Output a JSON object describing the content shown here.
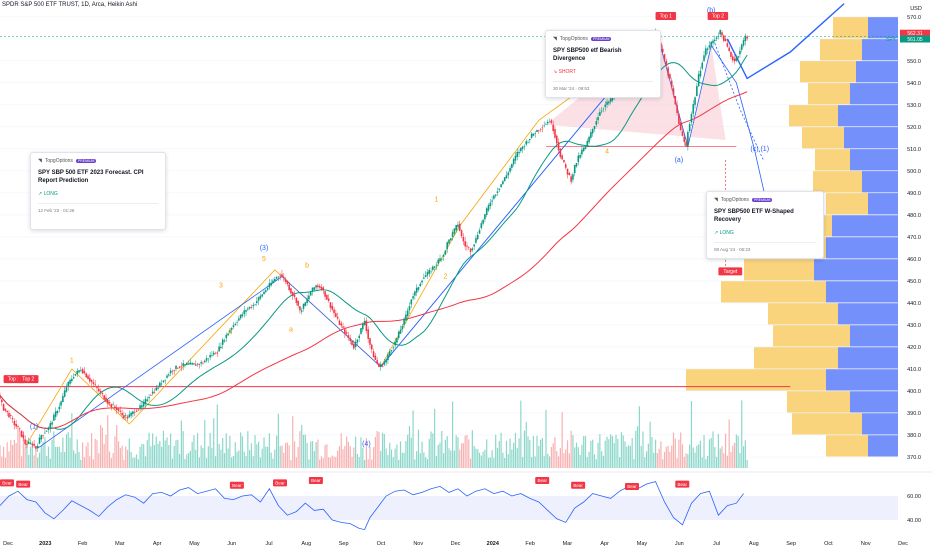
{
  "ideas": [
    {
      "author": "TopgOptions",
      "badge": "PREMIUM",
      "title": "SPY SBP 500 ETF 2023 Forecast. CPI Report Prediction",
      "direction": "↗ LONG",
      "time": "12 Feb '23 · 01:26"
    },
    {
      "author": "TopgOptions",
      "badge": "PREMIUM",
      "title": "SPY SBP500 etf Bearish Divergence",
      "direction": "↘ SHORT",
      "time": "30 Mar '24 · 09:53"
    },
    {
      "author": "TopgOptions",
      "badge": "PREMIUM",
      "title": "SPY SBP500 ETF W-Shaped Recovery",
      "direction": "↗ LONG",
      "time": "08 Aug '24 · 06:23"
    }
  ],
  "chart_data": {
    "type": "candlestick",
    "title": "SPDR S&P 500 ETF TRUST, 1D, Arca, Heikin Ashi",
    "symbol": "SPY",
    "currency": "USD",
    "last_price": "561.05",
    "high_marker": "562.31",
    "ylim": [
      365,
      574
    ],
    "y_ticks": [
      370,
      380,
      390,
      400,
      410,
      420,
      430,
      440,
      450,
      460,
      470,
      480,
      490,
      500,
      510,
      520,
      530,
      540,
      550,
      560,
      570
    ],
    "x_labels": [
      "Dec",
      "2023",
      "Feb",
      "Mar",
      "Apr",
      "May",
      "Jun",
      "Jul",
      "Aug",
      "Sep",
      "Oct",
      "Nov",
      "Dec",
      "2024",
      "Feb",
      "Mar",
      "Apr",
      "May",
      "Jun",
      "Jul",
      "Aug",
      "Sep",
      "Oct",
      "Nov",
      "Dec"
    ],
    "price_path": [
      [
        0,
        398
      ],
      [
        3,
        392
      ],
      [
        6,
        389
      ],
      [
        9,
        385
      ],
      [
        12,
        382
      ],
      [
        15,
        376
      ],
      [
        17,
        376
      ],
      [
        19,
        376
      ],
      [
        21,
        374
      ],
      [
        24,
        380
      ],
      [
        28,
        383
      ],
      [
        32,
        390
      ],
      [
        35,
        395
      ],
      [
        38,
        402
      ],
      [
        42,
        407
      ],
      [
        46,
        410
      ],
      [
        50,
        406
      ],
      [
        54,
        402
      ],
      [
        58,
        398
      ],
      [
        62,
        394
      ],
      [
        66,
        392
      ],
      [
        69,
        389
      ],
      [
        72,
        388
      ],
      [
        76,
        391
      ],
      [
        80,
        393
      ],
      [
        84,
        398
      ],
      [
        88,
        401
      ],
      [
        92,
        405
      ],
      [
        96,
        409
      ],
      [
        100,
        411
      ],
      [
        105,
        412
      ],
      [
        110,
        412
      ],
      [
        114,
        413
      ],
      [
        118,
        416
      ],
      [
        122,
        418
      ],
      [
        126,
        424
      ],
      [
        130,
        429
      ],
      [
        134,
        433
      ],
      [
        138,
        437
      ],
      [
        142,
        439
      ],
      [
        146,
        443
      ],
      [
        150,
        447
      ],
      [
        154,
        451
      ],
      [
        157,
        453
      ],
      [
        160,
        450
      ],
      [
        163,
        445
      ],
      [
        166,
        441
      ],
      [
        168,
        436
      ],
      [
        171,
        440
      ],
      [
        174,
        445
      ],
      [
        177,
        448
      ],
      [
        180,
        447
      ],
      [
        183,
        442
      ],
      [
        186,
        437
      ],
      [
        189,
        432
      ],
      [
        192,
        428
      ],
      [
        195,
        424
      ],
      [
        198,
        420
      ],
      [
        202,
        428
      ],
      [
        204,
        432
      ],
      [
        206,
        424
      ],
      [
        208,
        418
      ],
      [
        210,
        414
      ],
      [
        212,
        411
      ],
      [
        214,
        412
      ],
      [
        216,
        414
      ],
      [
        218,
        418
      ],
      [
        221,
        422
      ],
      [
        224,
        428
      ],
      [
        227,
        434
      ],
      [
        230,
        442
      ],
      [
        233,
        446
      ],
      [
        236,
        451
      ],
      [
        240,
        454
      ],
      [
        244,
        458
      ],
      [
        246,
        460
      ],
      [
        248,
        462
      ],
      [
        250,
        467
      ],
      [
        252,
        470
      ],
      [
        254,
        473
      ],
      [
        256,
        476
      ],
      [
        258,
        470
      ],
      [
        260,
        466
      ],
      [
        263,
        464
      ],
      [
        266,
        469
      ],
      [
        268,
        474
      ],
      [
        271,
        480
      ],
      [
        274,
        486
      ],
      [
        277,
        490
      ],
      [
        280,
        494
      ],
      [
        283,
        498
      ],
      [
        286,
        503
      ],
      [
        289,
        508
      ],
      [
        292,
        511
      ],
      [
        295,
        514
      ],
      [
        298,
        517
      ],
      [
        301,
        519
      ],
      [
        304,
        521
      ],
      [
        307,
        523
      ],
      [
        309,
        519
      ],
      [
        311,
        513
      ],
      [
        313,
        507
      ],
      [
        315,
        503
      ],
      [
        317,
        499
      ],
      [
        319,
        496
      ],
      [
        321,
        502
      ],
      [
        323,
        506
      ],
      [
        325,
        509
      ],
      [
        327,
        511
      ],
      [
        329,
        515
      ],
      [
        331,
        519
      ],
      [
        333,
        523
      ],
      [
        335,
        527
      ],
      [
        338,
        530
      ],
      [
        341,
        532
      ],
      [
        344,
        536
      ],
      [
        347,
        539
      ],
      [
        350,
        542
      ],
      [
        353,
        545
      ],
      [
        356,
        549
      ],
      [
        359,
        553
      ],
      [
        362,
        558
      ],
      [
        364,
        561
      ],
      [
        366,
        562
      ],
      [
        368,
        558
      ],
      [
        370,
        553
      ],
      [
        372,
        547
      ],
      [
        374,
        541
      ],
      [
        376,
        534
      ],
      [
        378,
        526
      ],
      [
        380,
        518
      ],
      [
        382,
        513
      ],
      [
        383,
        511
      ],
      [
        384,
        518
      ],
      [
        386,
        526
      ],
      [
        388,
        534
      ],
      [
        390,
        543
      ],
      [
        392,
        550
      ],
      [
        394,
        555
      ],
      [
        396,
        557
      ],
      [
        398,
        559
      ],
      [
        400,
        561
      ],
      [
        402,
        563
      ],
      [
        404,
        560
      ],
      [
        406,
        556
      ],
      [
        408,
        552
      ],
      [
        410,
        550
      ],
      [
        412,
        553
      ],
      [
        414,
        557
      ],
      [
        416,
        561
      ]
    ],
    "series": [
      {
        "name": "MA fast",
        "color": "#089981"
      },
      {
        "name": "MA slow",
        "color": "#f23645"
      }
    ],
    "annotations": [
      {
        "text": "(1)",
        "x": 19,
        "y": 383,
        "color": "#2962ff"
      },
      {
        "text": "1",
        "x": 40,
        "y": 413,
        "color": "#f7a600"
      },
      {
        "text": "3",
        "x": 123,
        "y": 447,
        "color": "#f7a600"
      },
      {
        "text": "4",
        "x": 128,
        "y": 426,
        "color": "#f7a600"
      },
      {
        "text": "(3)",
        "x": 147,
        "y": 464,
        "color": "#2962ff"
      },
      {
        "text": "5",
        "x": 147,
        "y": 459,
        "color": "#f7a600"
      },
      {
        "text": "a",
        "x": 162,
        "y": 427,
        "color": "#f7a600"
      },
      {
        "text": "b",
        "x": 171,
        "y": 456,
        "color": "#f7a600"
      },
      {
        "text": "(4)",
        "x": 204,
        "y": 375,
        "color": "#2962ff"
      },
      {
        "text": "1",
        "x": 243,
        "y": 486,
        "color": "#f7a600"
      },
      {
        "text": "2",
        "x": 248,
        "y": 451,
        "color": "#f7a600"
      },
      {
        "text": "3",
        "x": 334,
        "y": 534,
        "color": "#f7a600"
      },
      {
        "text": "4",
        "x": 338,
        "y": 508,
        "color": "#f7a600"
      },
      {
        "text": "(a)",
        "x": 378,
        "y": 504,
        "color": "#2962ff"
      },
      {
        "text": "(b)",
        "x": 396,
        "y": 572,
        "color": "#2962ff"
      },
      {
        "text": "(c) (1)",
        "x": 423,
        "y": 509,
        "color": "#2962ff"
      },
      {
        "text": "(c) (1.618)",
        "x": 430,
        "y": 472,
        "color": "#2962ff"
      }
    ],
    "tags": [
      {
        "text": "Top 1",
        "x": 2,
        "y": 404,
        "color": "#f23645"
      },
      {
        "text": "Top 2",
        "x": 10,
        "y": 404,
        "color": "#f23645"
      },
      {
        "text": "Top 1",
        "x": 365,
        "y": 569,
        "color": "#f23645"
      },
      {
        "text": "Top 2",
        "x": 394,
        "y": 569,
        "color": "#f23645"
      },
      {
        "text": "Target",
        "x": 400,
        "y": 453,
        "color": "#f23645"
      }
    ],
    "volume_profile": [
      {
        "price": 370,
        "buy": 0.3,
        "sell": 0.25
      },
      {
        "price": 380,
        "buy": 0.5,
        "sell": 0.3
      },
      {
        "price": 390,
        "buy": 0.45,
        "sell": 0.4
      },
      {
        "price": 400,
        "buy": 1.0,
        "sell": 0.6
      },
      {
        "price": 410,
        "buy": 0.6,
        "sell": 0.5
      },
      {
        "price": 420,
        "buy": 0.55,
        "sell": 0.4
      },
      {
        "price": 430,
        "buy": 0.5,
        "sell": 0.5
      },
      {
        "price": 440,
        "buy": 0.75,
        "sell": 0.6
      },
      {
        "price": 450,
        "buy": 0.5,
        "sell": 0.7
      },
      {
        "price": 460,
        "buy": 0.3,
        "sell": 0.6
      },
      {
        "price": 470,
        "buy": 0.25,
        "sell": 0.55
      },
      {
        "price": 480,
        "buy": 0.3,
        "sell": 0.25
      },
      {
        "price": 490,
        "buy": 0.35,
        "sell": 0.3
      },
      {
        "price": 500,
        "buy": 0.25,
        "sell": 0.4
      },
      {
        "price": 510,
        "buy": 0.3,
        "sell": 0.45
      },
      {
        "price": 520,
        "buy": 0.35,
        "sell": 0.5
      },
      {
        "price": 530,
        "buy": 0.3,
        "sell": 0.4
      },
      {
        "price": 540,
        "buy": 0.4,
        "sell": 0.35
      },
      {
        "price": 550,
        "buy": 0.3,
        "sell": 0.3
      },
      {
        "price": 560,
        "buy": 0.25,
        "sell": 0.25
      }
    ],
    "oscillator": {
      "y_ticks": [
        "60.00",
        "40.00"
      ],
      "ylim": [
        30,
        75
      ],
      "bear_tag": "Bear",
      "values": [
        [
          0,
          52
        ],
        [
          5,
          60
        ],
        [
          10,
          64
        ],
        [
          15,
          57
        ],
        [
          20,
          55
        ],
        [
          25,
          46
        ],
        [
          30,
          41
        ],
        [
          35,
          48
        ],
        [
          40,
          56
        ],
        [
          45,
          52
        ],
        [
          50,
          48
        ],
        [
          55,
          43
        ],
        [
          60,
          51
        ],
        [
          65,
          57
        ],
        [
          70,
          61
        ],
        [
          75,
          59
        ],
        [
          80,
          54
        ],
        [
          85,
          62
        ],
        [
          90,
          63
        ],
        [
          95,
          60
        ],
        [
          100,
          65
        ],
        [
          105,
          67
        ],
        [
          110,
          62
        ],
        [
          115,
          64
        ],
        [
          120,
          66
        ],
        [
          125,
          58
        ],
        [
          130,
          57
        ],
        [
          135,
          60
        ],
        [
          140,
          61
        ],
        [
          145,
          55
        ],
        [
          150,
          66
        ],
        [
          155,
          52
        ],
        [
          160,
          44
        ],
        [
          165,
          47
        ],
        [
          170,
          54
        ],
        [
          175,
          48
        ],
        [
          180,
          49
        ],
        [
          185,
          40
        ],
        [
          190,
          38
        ],
        [
          195,
          37
        ],
        [
          200,
          33
        ],
        [
          203,
          32
        ],
        [
          206,
          42
        ],
        [
          210,
          50
        ],
        [
          215,
          60
        ],
        [
          220,
          64
        ],
        [
          225,
          65
        ],
        [
          230,
          61
        ],
        [
          235,
          63
        ],
        [
          240,
          66
        ],
        [
          245,
          68
        ],
        [
          250,
          63
        ],
        [
          255,
          66
        ],
        [
          260,
          60
        ],
        [
          265,
          64
        ],
        [
          270,
          66
        ],
        [
          275,
          62
        ],
        [
          280,
          64
        ],
        [
          285,
          60
        ],
        [
          290,
          62
        ],
        [
          295,
          58
        ],
        [
          300,
          55
        ],
        [
          305,
          48
        ],
        [
          310,
          41
        ],
        [
          315,
          38
        ],
        [
          320,
          50
        ],
        [
          325,
          55
        ],
        [
          330,
          62
        ],
        [
          335,
          60
        ],
        [
          340,
          58
        ],
        [
          345,
          64
        ],
        [
          350,
          68
        ],
        [
          355,
          66
        ],
        [
          360,
          70
        ],
        [
          365,
          72
        ],
        [
          370,
          55
        ],
        [
          375,
          42
        ],
        [
          380,
          36
        ],
        [
          385,
          54
        ],
        [
          390,
          62
        ],
        [
          395,
          64
        ],
        [
          400,
          44
        ],
        [
          405,
          52
        ],
        [
          410,
          54
        ],
        [
          414,
          62
        ]
      ],
      "bears": [
        [
          0,
          68
        ],
        [
          9,
          67
        ],
        [
          128,
          66
        ],
        [
          152,
          68
        ],
        [
          172,
          70
        ],
        [
          298,
          70
        ],
        [
          318,
          66
        ],
        [
          348,
          65
        ],
        [
          376,
          67
        ]
      ]
    }
  }
}
